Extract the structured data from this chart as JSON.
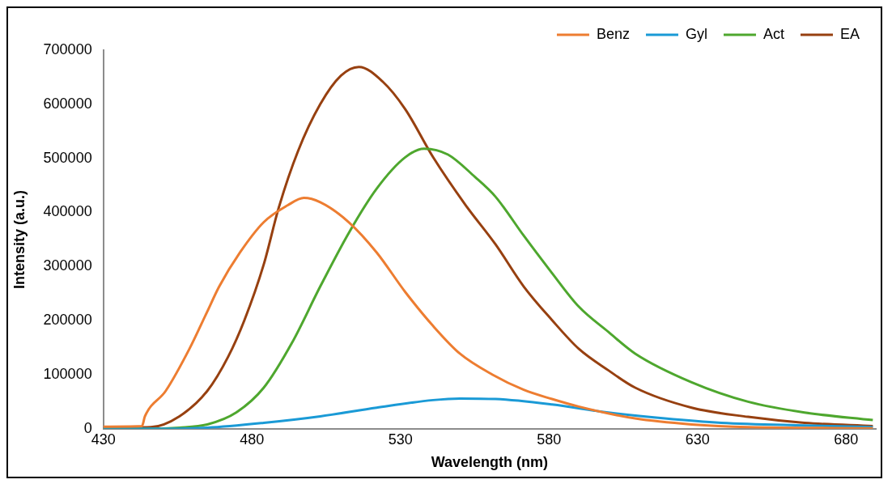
{
  "chart_data": {
    "type": "line",
    "xlabel": "Wavelength (nm)",
    "ylabel": "Intensity (a.u.)",
    "xlim": [
      430,
      690
    ],
    "xticks": [
      430,
      480,
      530,
      580,
      630,
      680
    ],
    "ylim": [
      0,
      700000
    ],
    "yticks": [
      0,
      100000,
      200000,
      300000,
      400000,
      500000,
      600000,
      700000
    ],
    "grid": false,
    "legend": "top right",
    "marker": "none",
    "line_style": "solid",
    "series": [
      {
        "name": "Benz",
        "color": "#ed7d31",
        "x": [
          430,
          443,
          444,
          451,
          459,
          465,
          469,
          476,
          484,
          492,
          497.5,
          503,
          512.6,
          522,
          531.6,
          541,
          550,
          561,
          571.5,
          581,
          590,
          609,
          628,
          647,
          689
        ],
        "values": [
          4000,
          5000,
          23000,
          70000,
          148000,
          217000,
          263000,
          326000,
          382000,
          413000,
          427000,
          419000,
          382000,
          326000,
          253000,
          190000,
          139000,
          100000,
          72000,
          55000,
          41000,
          19000,
          8000,
          3000,
          1000
        ]
      },
      {
        "name": "Gyl",
        "color": "#1a9ad6",
        "x": [
          430,
          450,
          465,
          484,
          503,
          522,
          541,
          550,
          562,
          581,
          600,
          619,
          638,
          666,
          689
        ],
        "values": [
          0,
          0,
          2000,
          11000,
          23000,
          39000,
          53000,
          56000,
          55000,
          45000,
          30000,
          19000,
          11000,
          6000,
          3000
        ]
      },
      {
        "name": "Act",
        "color": "#4ea72e",
        "x": [
          430,
          445,
          455.6,
          465,
          474.7,
          484,
          493.5,
          503,
          512.6,
          522,
          531.6,
          538,
          546,
          555,
          562,
          571.5,
          581,
          590,
          600,
          609,
          628,
          647,
          666,
          689
        ],
        "values": [
          0,
          0,
          2000,
          8000,
          30000,
          76000,
          159000,
          263000,
          362000,
          444000,
          502000,
          518000,
          507000,
          466000,
          429000,
          357000,
          288000,
          226000,
          179000,
          139000,
          86000,
          50000,
          30000,
          16000
        ]
      },
      {
        "name": "EA",
        "color": "#974010",
        "x": [
          430,
          446,
          455.6,
          465,
          472,
          477.5,
          484,
          489,
          495.5,
          503,
          510,
          516,
          524,
          531.6,
          541,
          552,
          562,
          571.5,
          581,
          590,
          600,
          609,
          628,
          647,
          666,
          689
        ],
        "values": [
          2000,
          3000,
          23000,
          70000,
          133000,
          201000,
          304000,
          408000,
          513000,
          600000,
          653000,
          669000,
          642000,
          591000,
          502000,
          413000,
          341000,
          263000,
          201000,
          148000,
          108000,
          76000,
          39000,
          22000,
          11000,
          5000
        ]
      }
    ]
  }
}
